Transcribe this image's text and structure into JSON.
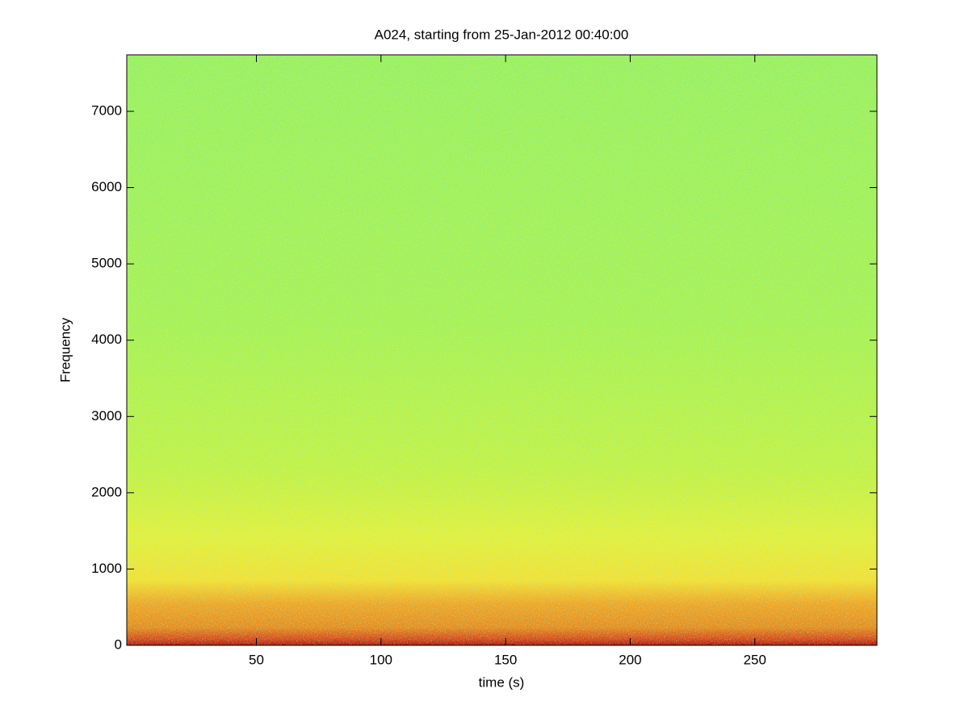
{
  "chart_data": {
    "type": "spectrogram",
    "title": "A024, starting from 25-Jan-2012 00:40:00",
    "x_label": "time (s)",
    "y_label": "Frequency",
    "xlim": [
      -2,
      299
    ],
    "xticks": [
      50,
      100,
      150,
      200,
      250
    ],
    "ylim": [
      0,
      7740
    ],
    "yticks": [
      0,
      1000,
      2000,
      3000,
      4000,
      5000,
      6000,
      7000
    ]
  }
}
